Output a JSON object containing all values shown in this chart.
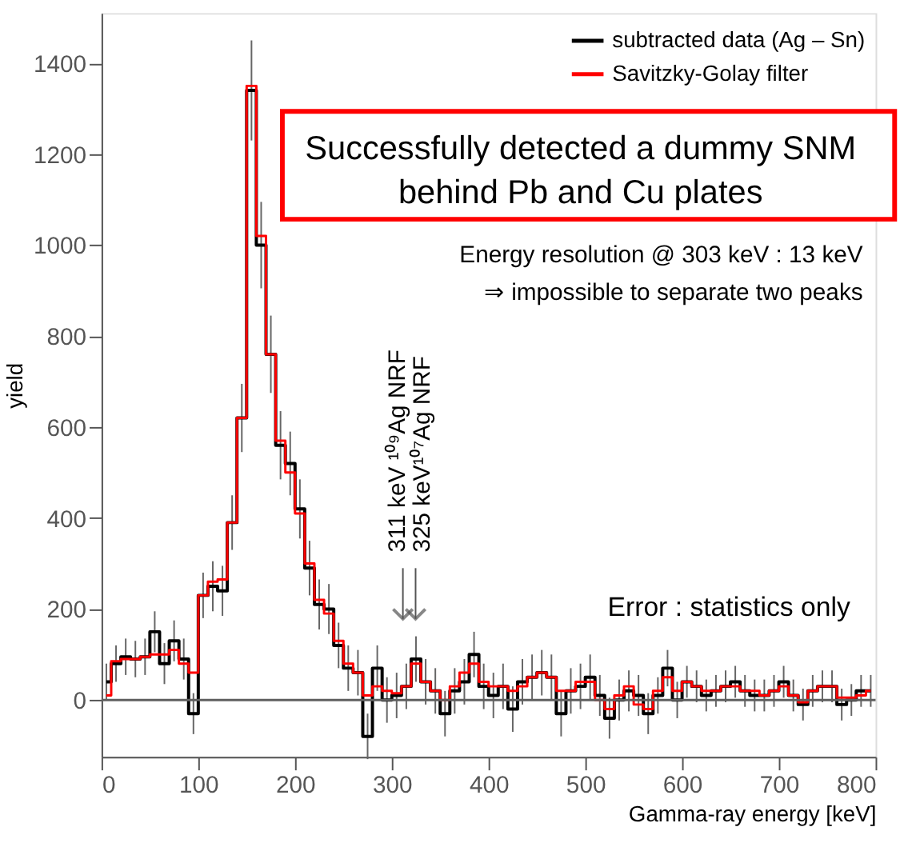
{
  "chart_data": {
    "type": "step",
    "xlabel": "Gamma-ray energy [keV]",
    "ylabel": "yield",
    "x": [
      5,
      15,
      25,
      35,
      45,
      55,
      65,
      75,
      85,
      95,
      105,
      115,
      125,
      135,
      145,
      155,
      165,
      175,
      185,
      195,
      205,
      215,
      225,
      235,
      245,
      255,
      265,
      275,
      285,
      295,
      305,
      315,
      325,
      335,
      345,
      355,
      365,
      375,
      385,
      395,
      405,
      415,
      425,
      435,
      445,
      455,
      465,
      475,
      485,
      495,
      505,
      515,
      525,
      535,
      545,
      555,
      565,
      575,
      585,
      595,
      605,
      615,
      625,
      635,
      645,
      655,
      665,
      675,
      685,
      695,
      705,
      715,
      725,
      735,
      745,
      755,
      765,
      775,
      785,
      795
    ],
    "series": [
      {
        "name": "subtracted data (Ag – Sn)",
        "color": "#000000",
        "values": [
          40,
          80,
          95,
          90,
          95,
          150,
          80,
          130,
          90,
          -30,
          230,
          250,
          240,
          390,
          620,
          1340,
          1000,
          760,
          560,
          520,
          420,
          290,
          210,
          200,
          120,
          70,
          60,
          -80,
          70,
          0,
          10,
          30,
          90,
          40,
          20,
          -30,
          20,
          40,
          100,
          30,
          10,
          30,
          -20,
          40,
          50,
          60,
          50,
          -30,
          20,
          30,
          50,
          10,
          -40,
          0,
          20,
          10,
          -30,
          10,
          70,
          0,
          40,
          30,
          10,
          20,
          30,
          40,
          20,
          10,
          10,
          20,
          40,
          10,
          -10,
          20,
          30,
          30,
          -10,
          0,
          20,
          20
        ],
        "errors": [
          40,
          40,
          40,
          40,
          40,
          45,
          45,
          45,
          45,
          45,
          50,
          55,
          55,
          60,
          75,
          110,
          95,
          85,
          75,
          70,
          65,
          60,
          55,
          55,
          50,
          50,
          50,
          50,
          50,
          50,
          50,
          50,
          50,
          50,
          50,
          50,
          50,
          50,
          50,
          50,
          50,
          50,
          50,
          50,
          50,
          50,
          50,
          50,
          50,
          50,
          50,
          45,
          45,
          45,
          45,
          45,
          45,
          40,
          40,
          40,
          35,
          35,
          35,
          35,
          35,
          35,
          35,
          35,
          35,
          35,
          35,
          35,
          35,
          35,
          35,
          35,
          35,
          35,
          35,
          35
        ]
      },
      {
        "name": "Savitzky-Golay filter",
        "color": "#ff0000",
        "values": [
          10,
          85,
          90,
          90,
          95,
          100,
          100,
          110,
          80,
          60,
          230,
          260,
          265,
          390,
          620,
          1350,
          1020,
          760,
          570,
          500,
          410,
          300,
          220,
          190,
          130,
          80,
          60,
          10,
          30,
          20,
          15,
          30,
          80,
          40,
          20,
          0,
          30,
          60,
          80,
          40,
          30,
          30,
          20,
          30,
          50,
          60,
          50,
          20,
          20,
          40,
          40,
          0,
          -20,
          10,
          30,
          -10,
          -20,
          20,
          50,
          20,
          40,
          30,
          20,
          20,
          30,
          30,
          20,
          20,
          10,
          20,
          30,
          10,
          -5,
          20,
          30,
          30,
          5,
          5,
          10,
          20
        ]
      }
    ],
    "xlim": [
      0,
      800
    ],
    "xticks": [
      0,
      100,
      200,
      300,
      400,
      500,
      600,
      700,
      800
    ],
    "ylim": [
      -125,
      1510
    ],
    "yticks": [
      0,
      200,
      400,
      600,
      800,
      1000,
      1200,
      1400
    ],
    "ref_lines": [
      {
        "axis": "y",
        "value": 0,
        "color": "#606060"
      }
    ],
    "legend": "top right",
    "grid": false,
    "annotations": [
      "311 keV ¹⁰⁹Ag NRF",
      "325 keV¹⁰⁷Ag NRF",
      "Successfully detected a dummy SNM",
      "behind Pb and Cu plates",
      "Energy resolution @ 303 keV  :  13 keV",
      "⇒  impossible to separate two peaks",
      "Error : statistics only"
    ]
  }
}
